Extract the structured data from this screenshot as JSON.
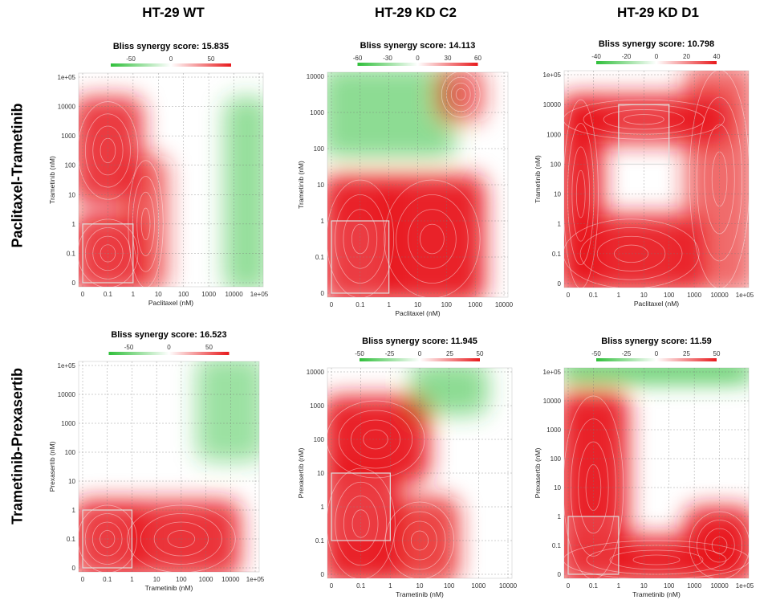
{
  "column_titles": [
    "HT-29 WT",
    "HT-29 KD C2",
    "HT-29 KD D1"
  ],
  "row_titles": [
    "Paclitaxel-Trametinib",
    "Trametinib-Prexasertib"
  ],
  "colors": {
    "synergy": "#e8191c",
    "antagonism": "#2fbf3a",
    "neutral": "#ffffff"
  },
  "chart_data": [
    {
      "type": "heatmap",
      "title": "Bliss synergy score: 15.835",
      "xlabel": "Paclitaxel (nM)",
      "ylabel": "Trametinib (nM)",
      "x_ticks": [
        "0",
        "0.1",
        "1",
        "10",
        "100",
        "1000",
        "10000",
        "1e+05"
      ],
      "y_ticks": [
        "0",
        "0.1",
        "1",
        "10",
        "100",
        "1000",
        "10000",
        "1e+05"
      ],
      "legend_ticks": [
        -50,
        0,
        50
      ],
      "legend_range": [
        -75,
        75
      ],
      "highlight_box": {
        "x": [
          "0",
          "1"
        ],
        "y": [
          "0",
          "1"
        ]
      },
      "blobs": [
        {
          "x": [
            "0",
            "1"
          ],
          "y": [
            "0",
            "1"
          ],
          "score": 68
        },
        {
          "x": [
            "0",
            "1"
          ],
          "y": [
            "10",
            "10000"
          ],
          "score": 48
        },
        {
          "x": [
            "1",
            "10"
          ],
          "y": [
            "0",
            "100"
          ],
          "score": 35
        },
        {
          "x": [
            "10000",
            "1e+05"
          ],
          "y": [
            "0",
            "10000"
          ],
          "score": -25
        }
      ]
    },
    {
      "type": "heatmap",
      "title": "Bliss synergy score: 14.113",
      "xlabel": "Paclitaxel (nM)",
      "ylabel": "Trametinib (nM)",
      "x_ticks": [
        "0",
        "0.1",
        "1",
        "10",
        "100",
        "1000",
        "10000"
      ],
      "y_ticks": [
        "0",
        "0.1",
        "1",
        "10",
        "100",
        "1000",
        "10000"
      ],
      "legend_ticks": [
        -60,
        -30,
        0,
        30,
        60
      ],
      "legend_range": [
        -60,
        60
      ],
      "highlight_box": {
        "x": [
          "0",
          "1"
        ],
        "y": [
          "0",
          "1"
        ]
      },
      "blobs": [
        {
          "x": [
            "0",
            "1"
          ],
          "y": [
            "0",
            "10"
          ],
          "score": 55
        },
        {
          "x": [
            "1",
            "1000"
          ],
          "y": [
            "0",
            "10"
          ],
          "score": 50
        },
        {
          "x": [
            "0",
            "100"
          ],
          "y": [
            "100",
            "10000"
          ],
          "score": -22
        },
        {
          "x": [
            "100",
            "1000"
          ],
          "y": [
            "1000",
            "10000"
          ],
          "score": 28
        }
      ]
    },
    {
      "type": "heatmap",
      "title": "Bliss synergy score: 10.798",
      "xlabel": "Paclitaxel (nM)",
      "ylabel": "Trametinib (nM)",
      "x_ticks": [
        "0",
        "0.1",
        "1",
        "10",
        "100",
        "1000",
        "10000",
        "1e+05"
      ],
      "y_ticks": [
        "0",
        "0.1",
        "1",
        "10",
        "100",
        "1000",
        "10000",
        "1e+05"
      ],
      "legend_ticks": [
        -40,
        -20,
        0,
        20,
        40
      ],
      "legend_range": [
        -40,
        40
      ],
      "highlight_box": {
        "x": [
          "1",
          "100"
        ],
        "y": [
          "100",
          "10000"
        ]
      },
      "blobs": [
        {
          "x": [
            "0",
            "10000"
          ],
          "y": [
            "1000",
            "10000"
          ],
          "score": 38
        },
        {
          "x": [
            "0",
            "1000"
          ],
          "y": [
            "0",
            "1"
          ],
          "score": 28
        },
        {
          "x": [
            "0",
            "0.1"
          ],
          "y": [
            "0",
            "10000"
          ],
          "score": 30
        },
        {
          "x": [
            "1000",
            "1e+05"
          ],
          "y": [
            "0",
            "1e+05"
          ],
          "score": 18
        }
      ]
    },
    {
      "type": "heatmap",
      "title": "Bliss synergy score: 16.523",
      "xlabel": "Trametinib (nM)",
      "ylabel": "Prexasertib (nM)",
      "x_ticks": [
        "0",
        "0.1",
        "1",
        "10",
        "100",
        "1000",
        "10000",
        "1e+05"
      ],
      "y_ticks": [
        "0",
        "0.1",
        "1",
        "10",
        "100",
        "1000",
        "10000",
        "1e+05"
      ],
      "legend_ticks": [
        -50,
        0,
        50
      ],
      "legend_range": [
        -75,
        75
      ],
      "highlight_box": {
        "x": [
          "0",
          "1"
        ],
        "y": [
          "0",
          "1"
        ]
      },
      "blobs": [
        {
          "x": [
            "0",
            "1"
          ],
          "y": [
            "0",
            "1"
          ],
          "score": 70
        },
        {
          "x": [
            "1",
            "10000"
          ],
          "y": [
            "0",
            "1"
          ],
          "score": 50
        },
        {
          "x": [
            "1000",
            "1e+05"
          ],
          "y": [
            "100",
            "1e+05"
          ],
          "score": -22
        }
      ]
    },
    {
      "type": "heatmap",
      "title": "Bliss synergy score: 11.945",
      "xlabel": "Trametinib (nM)",
      "ylabel": "Prexasertib (nM)",
      "x_ticks": [
        "0",
        "0.1",
        "1",
        "10",
        "100",
        "1000",
        "10000"
      ],
      "y_ticks": [
        "0",
        "0.1",
        "1",
        "10",
        "100",
        "1000",
        "10000"
      ],
      "legend_ticks": [
        -50,
        -25,
        0,
        25,
        50
      ],
      "legend_range": [
        -50,
        50
      ],
      "highlight_box": {
        "x": [
          "0",
          "1"
        ],
        "y": [
          "0.1",
          "10"
        ]
      },
      "blobs": [
        {
          "x": [
            "0",
            "1"
          ],
          "y": [
            "0",
            "10"
          ],
          "score": 52
        },
        {
          "x": [
            "0",
            "10"
          ],
          "y": [
            "10",
            "1000"
          ],
          "score": 38
        },
        {
          "x": [
            "1",
            "100"
          ],
          "y": [
            "0",
            "1"
          ],
          "score": 30
        },
        {
          "x": [
            "10",
            "1000"
          ],
          "y": [
            "1000",
            "10000"
          ],
          "score": -18
        }
      ]
    },
    {
      "type": "heatmap",
      "title": "Bliss synergy score: 11.59",
      "xlabel": "Trametinib (nM)",
      "ylabel": "Prexasertib (nM)",
      "x_ticks": [
        "0",
        "0.1",
        "1",
        "10",
        "100",
        "1000",
        "10000",
        "1e+05"
      ],
      "y_ticks": [
        "0",
        "0.1",
        "1",
        "10",
        "100",
        "1000",
        "10000",
        "1e+05"
      ],
      "legend_ticks": [
        -50,
        -25,
        0,
        25,
        50
      ],
      "legend_range": [
        -50,
        50
      ],
      "highlight_box": {
        "x": [
          "0",
          "1"
        ],
        "y": [
          "0",
          "1"
        ]
      },
      "blobs": [
        {
          "x": [
            "0",
            "1"
          ],
          "y": [
            "0",
            "10000"
          ],
          "score": 42
        },
        {
          "x": [
            "0",
            "1e+05"
          ],
          "y": [
            "0",
            "0.1"
          ],
          "score": 48
        },
        {
          "x": [
            "1000",
            "1e+05"
          ],
          "y": [
            "0",
            "1"
          ],
          "score": 40
        },
        {
          "x": [
            "0",
            "1e+05"
          ],
          "y": [
            "1e+05",
            "1e+05"
          ],
          "score": -35
        }
      ]
    }
  ]
}
